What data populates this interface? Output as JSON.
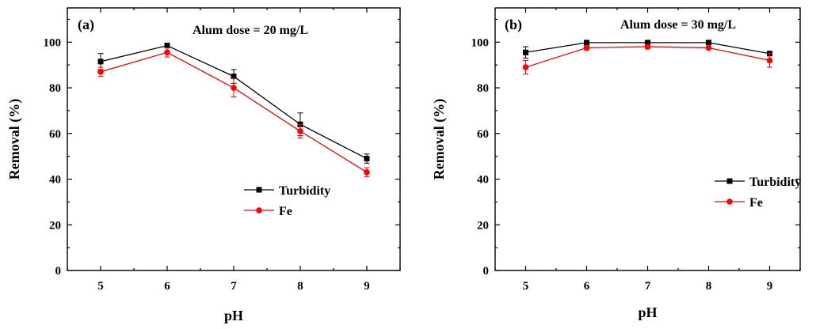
{
  "chart_data": [
    {
      "type": "line",
      "panel_label": "(a)",
      "annotation": "Alum dose = 20 mg/L",
      "xlabel": "pH",
      "ylabel": "Removal (%)",
      "x": [
        5,
        6,
        7,
        8,
        9
      ],
      "xticks": [
        "5",
        "6",
        "7",
        "8",
        "9"
      ],
      "yticks": [
        "0",
        "20",
        "40",
        "60",
        "80",
        "100"
      ],
      "xlim": [
        4.5,
        9.5
      ],
      "ylim": [
        0,
        115
      ],
      "grid": false,
      "legend_position": "center-right",
      "series": [
        {
          "name": "Turbidity",
          "color": "#000000",
          "marker": "square",
          "values": [
            91.5,
            98.5,
            85.0,
            64.0,
            49.0
          ],
          "errors": [
            3.5,
            1.0,
            3.0,
            5.0,
            2.0
          ]
        },
        {
          "name": "Fe",
          "color": "#ff0000",
          "marker": "circle",
          "values": [
            87.0,
            95.5,
            80.0,
            61.0,
            43.0
          ],
          "errors": [
            2.0,
            2.0,
            4.0,
            3.0,
            2.0
          ]
        }
      ]
    },
    {
      "type": "line",
      "panel_label": "(b)",
      "annotation": "Alum dose = 30 mg/L",
      "xlabel": "pH",
      "ylabel": "Removal (%)",
      "x": [
        5,
        6,
        7,
        8,
        9
      ],
      "xticks": [
        "5",
        "6",
        "7",
        "8",
        "9"
      ],
      "yticks": [
        "0",
        "20",
        "40",
        "60",
        "80",
        "100"
      ],
      "xlim": [
        4.5,
        9.5
      ],
      "ylim": [
        0,
        115
      ],
      "grid": false,
      "legend_position": "center-right",
      "series": [
        {
          "name": "Turbidity",
          "color": "#000000",
          "marker": "square",
          "values": [
            95.5,
            99.8,
            99.8,
            99.8,
            95.0
          ],
          "errors": [
            2.5,
            0.5,
            0.5,
            0.5,
            1.0
          ]
        },
        {
          "name": "Fe",
          "color": "#ff0000",
          "marker": "circle",
          "values": [
            89.0,
            97.5,
            98.0,
            97.5,
            92.0
          ],
          "errors": [
            3.0,
            1.0,
            1.0,
            0.5,
            3.0
          ]
        }
      ]
    }
  ]
}
